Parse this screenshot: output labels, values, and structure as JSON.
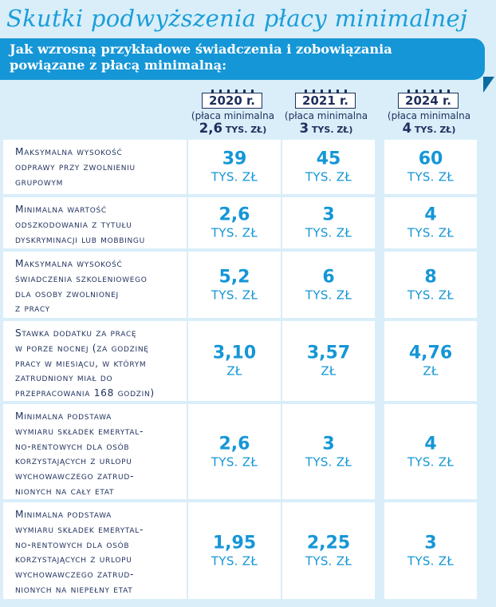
{
  "title": "Skutki podwyższenia płacy minimalnej",
  "subtitle_lines": [
    "Jak wzrosną przykładowe świadczenia i zobowiązania",
    "powiązane z płacą minimalną:"
  ],
  "years": [
    {
      "year": "2020 r.",
      "note": "(płaca minimalna",
      "amount": "2,6",
      "amount_unit": "TYS. ZŁ)"
    },
    {
      "year": "2021 r.",
      "note": "(płaca minimalna",
      "amount": "3",
      "amount_unit": "TYS. ZŁ)"
    },
    {
      "year": "2024 r.",
      "note": "(płaca minimalna",
      "amount": "4",
      "amount_unit": "TYS. ZŁ)"
    }
  ],
  "rows": [
    {
      "label": [
        "Maksymalna wysokość",
        "odprawy przy zwolnieniu",
        "grupowym"
      ],
      "values": [
        {
          "num": "39",
          "unit": "TYS. ZŁ"
        },
        {
          "num": "45",
          "unit": "TYS. ZŁ"
        },
        {
          "num": "60",
          "unit": "TYS. ZŁ"
        }
      ]
    },
    {
      "label": [
        "Minimalna wartość",
        "odszkodowania z tytułu",
        "dyskryminacji lub mobbingu"
      ],
      "values": [
        {
          "num": "2,6",
          "unit": "TYS. ZŁ"
        },
        {
          "num": "3",
          "unit": "TYS. ZŁ"
        },
        {
          "num": "4",
          "unit": "TYS. ZŁ"
        }
      ]
    },
    {
      "label": [
        "Maksymalna wysokość",
        "świadczenia szkoleniowego",
        "dla osoby zwolnionej",
        "z pracy"
      ],
      "values": [
        {
          "num": "5,2",
          "unit": "TYS. ZŁ"
        },
        {
          "num": "6",
          "unit": "TYS. ZŁ"
        },
        {
          "num": "8",
          "unit": "TYS. ZŁ"
        }
      ]
    },
    {
      "label": [
        "Stawka dodatku za pracę",
        "w porze nocnej (za godzinę",
        "pracy w miesiącu, w którym",
        "zatrudniony miał do",
        "przepracowania 168 godzin)"
      ],
      "values": [
        {
          "num": "3,10",
          "unit": "ZŁ"
        },
        {
          "num": "3,57",
          "unit": "ZŁ"
        },
        {
          "num": "4,76",
          "unit": "ZŁ"
        }
      ]
    },
    {
      "label": [
        "Minimalna podstawa",
        "wymiaru składek emerytal-",
        "no-rentowych dla osób",
        "korzystających z urlopu",
        "wychowawczego zatrud-",
        "nionych na cały etat"
      ],
      "values": [
        {
          "num": "2,6",
          "unit": "TYS. ZŁ"
        },
        {
          "num": "3",
          "unit": "TYS. ZŁ"
        },
        {
          "num": "4",
          "unit": "TYS. ZŁ"
        }
      ]
    },
    {
      "label": [
        "Minimalna podstawa",
        "wymiaru składek emerytal-",
        "no-rentowych dla osób",
        "korzystających z urlopu",
        "wychowawczego zatrud-",
        "nionych na niepełny etat"
      ],
      "values": [
        {
          "num": "1,95",
          "unit": "TYS. ZŁ"
        },
        {
          "num": "2,25",
          "unit": "TYS. ZŁ"
        },
        {
          "num": "3",
          "unit": "TYS. ZŁ"
        }
      ]
    }
  ]
}
